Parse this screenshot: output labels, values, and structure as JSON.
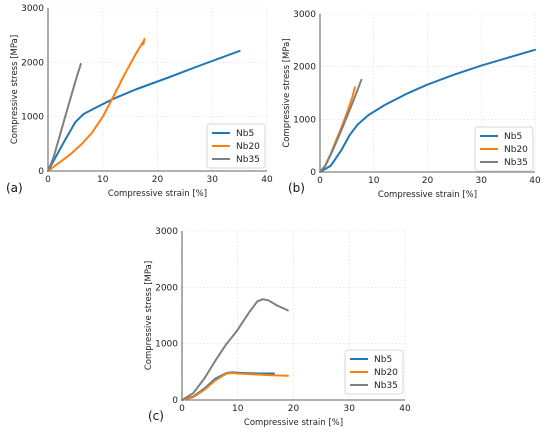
{
  "chart_data": [
    {
      "panel_label": "(a)",
      "type": "line",
      "xlabel": "Compressive strain [%]",
      "ylabel": "Compressive stress [MPa]",
      "xlim": [
        0,
        40
      ],
      "ylim": [
        0,
        3000
      ],
      "xticks": [
        0,
        10,
        20,
        30,
        40
      ],
      "yticks": [
        0,
        1000,
        2000,
        3000
      ],
      "grid": true,
      "legend": "bottom-right",
      "series": [
        {
          "name": "Nb5",
          "color": "#1f77b4",
          "x": [
            0,
            3,
            5,
            6.5,
            9,
            12,
            16,
            22,
            28,
            35
          ],
          "y": [
            0,
            550,
            900,
            1050,
            1180,
            1330,
            1500,
            1720,
            1950,
            2210
          ]
        },
        {
          "name": "Nb20",
          "color": "#ff7f0e",
          "x": [
            0,
            2,
            4,
            6,
            8,
            10,
            12,
            14,
            16,
            17.5,
            17.4,
            17.6
          ],
          "y": [
            0,
            150,
            300,
            480,
            700,
            1000,
            1380,
            1780,
            2150,
            2400,
            2330,
            2430
          ]
        },
        {
          "name": "Nb35",
          "color": "#7f7f7f",
          "x": [
            0,
            1,
            2,
            3,
            4,
            5,
            6
          ],
          "y": [
            0,
            250,
            600,
            950,
            1300,
            1650,
            1970
          ]
        }
      ]
    },
    {
      "panel_label": "(b)",
      "type": "line",
      "xlabel": "Compressive strain [%]",
      "ylabel": "Compressive stress [MPa]",
      "xlim": [
        0,
        40
      ],
      "ylim": [
        0,
        3000
      ],
      "xticks": [
        0,
        10,
        20,
        30,
        40
      ],
      "yticks": [
        0,
        1000,
        2000,
        3000
      ],
      "grid": true,
      "legend": "bottom-right",
      "series": [
        {
          "name": "Nb5",
          "color": "#1f77b4",
          "x": [
            0,
            2,
            4,
            5.5,
            7,
            9,
            12,
            16,
            20,
            25,
            30,
            35,
            40
          ],
          "y": [
            0,
            120,
            420,
            700,
            900,
            1080,
            1270,
            1480,
            1660,
            1850,
            2020,
            2170,
            2320
          ]
        },
        {
          "name": "Nb20",
          "color": "#ff7f0e",
          "x": [
            0,
            1,
            2,
            3,
            4,
            5,
            6,
            6.5
          ],
          "y": [
            0,
            130,
            350,
            600,
            850,
            1120,
            1420,
            1610
          ]
        },
        {
          "name": "Nb35",
          "color": "#7f7f7f",
          "x": [
            0,
            1,
            2,
            3,
            4,
            5,
            6,
            7,
            7.7
          ],
          "y": [
            0,
            120,
            330,
            560,
            800,
            1050,
            1300,
            1560,
            1750
          ]
        }
      ]
    },
    {
      "panel_label": "(c)",
      "type": "line",
      "xlabel": "Compressive strain [%]",
      "ylabel": "Compressive stress [MPa]",
      "xlim": [
        0,
        40
      ],
      "ylim": [
        0,
        3000
      ],
      "xticks": [
        0,
        10,
        20,
        30,
        40
      ],
      "yticks": [
        0,
        1000,
        2000,
        3000
      ],
      "grid": true,
      "legend": "bottom-right",
      "series": [
        {
          "name": "Nb5",
          "color": "#1f77b4",
          "x": [
            0,
            2,
            4,
            6,
            8,
            9,
            10,
            12,
            14,
            16.5
          ],
          "y": [
            0,
            60,
            200,
            380,
            480,
            490,
            485,
            475,
            470,
            470
          ]
        },
        {
          "name": "Nb20",
          "color": "#ff7f0e",
          "x": [
            0,
            2,
            4,
            6,
            8,
            9,
            10,
            12,
            14,
            16,
            19
          ],
          "y": [
            0,
            50,
            180,
            350,
            470,
            480,
            470,
            460,
            450,
            440,
            430
          ]
        },
        {
          "name": "Nb35",
          "color": "#7f7f7f",
          "x": [
            0,
            2,
            4,
            6,
            8,
            9,
            10,
            12,
            13.5,
            14.5,
            15.5,
            17,
            19
          ],
          "y": [
            0,
            120,
            380,
            700,
            1000,
            1120,
            1250,
            1550,
            1750,
            1790,
            1770,
            1680,
            1590
          ]
        }
      ]
    }
  ]
}
